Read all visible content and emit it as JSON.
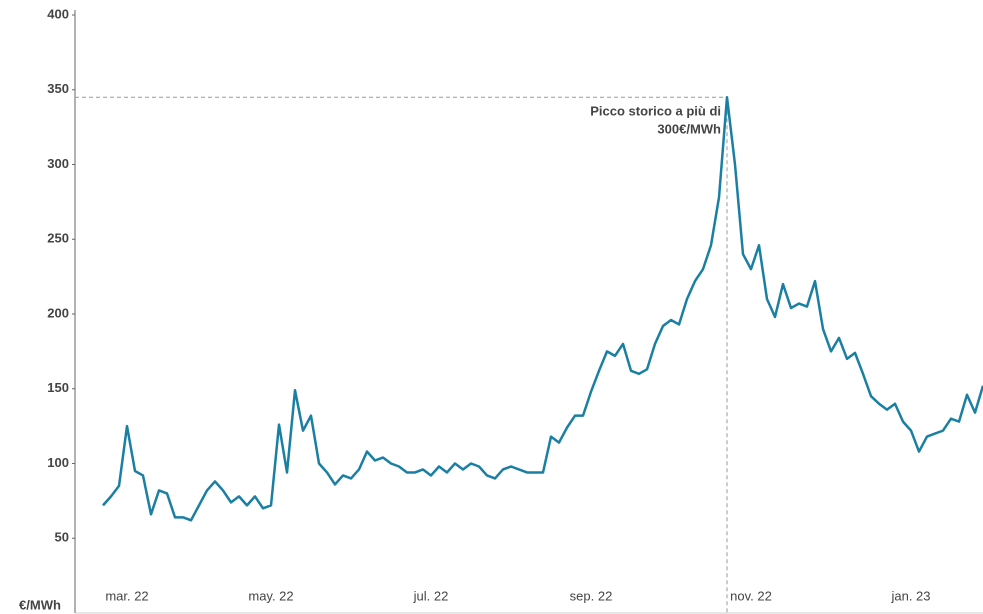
{
  "chart_data": {
    "type": "line",
    "y_label": "€/MWh",
    "annotation": [
      "Picco storico a più di",
      "300€/MWh"
    ],
    "categories": [
      null,
      null,
      null,
      "mar. 22",
      null,
      null,
      null,
      null,
      null,
      null,
      null,
      null,
      null,
      null,
      null,
      null,
      null,
      null,
      null,
      null,
      null,
      "may. 22",
      null,
      null,
      null,
      null,
      null,
      null,
      null,
      null,
      null,
      null,
      null,
      null,
      null,
      null,
      null,
      null,
      null,
      null,
      null,
      "jul. 22",
      null,
      null,
      null,
      null,
      null,
      null,
      null,
      null,
      null,
      null,
      null,
      null,
      null,
      null,
      null,
      null,
      null,
      null,
      null,
      "sep. 22",
      null,
      null,
      null,
      null,
      null,
      null,
      null,
      null,
      null,
      null,
      null,
      null,
      null,
      null,
      null,
      null,
      null,
      null,
      null,
      "nov. 22",
      null,
      null,
      null,
      null,
      null,
      null,
      null,
      null,
      null,
      null,
      null,
      null,
      null,
      null,
      null,
      null,
      null,
      null,
      null,
      "jan. 23",
      null,
      null,
      null,
      null,
      null,
      null,
      null,
      null,
      null
    ],
    "series": [
      {
        "color": "#1a7fa3",
        "values": [
          72,
          78,
          85,
          125,
          95,
          92,
          66,
          82,
          80,
          64,
          64,
          62,
          72,
          82,
          88,
          82,
          74,
          78,
          72,
          78,
          70,
          72,
          126,
          94,
          149,
          122,
          132,
          100,
          94,
          86,
          92,
          90,
          96,
          108,
          102,
          104,
          100,
          98,
          94,
          94,
          96,
          92,
          98,
          94,
          100,
          96,
          100,
          98,
          92,
          90,
          96,
          98,
          96,
          94,
          94,
          94,
          118,
          114,
          124,
          132,
          132,
          148,
          162,
          175,
          172,
          180,
          162,
          160,
          163,
          180,
          192,
          196,
          193,
          210,
          222,
          230,
          246,
          278,
          345,
          300,
          240,
          230,
          246,
          210,
          198,
          220,
          204,
          207,
          205,
          222,
          190,
          175,
          184,
          170,
          174,
          160,
          145,
          140,
          136,
          140,
          128,
          122,
          108,
          118,
          120,
          122,
          130,
          128,
          146,
          134,
          152
        ]
      }
    ],
    "peak_index": 78,
    "ylim": [
      0,
      400
    ],
    "yticks": [
      50,
      100,
      150,
      200,
      250,
      300,
      350,
      400
    ]
  }
}
